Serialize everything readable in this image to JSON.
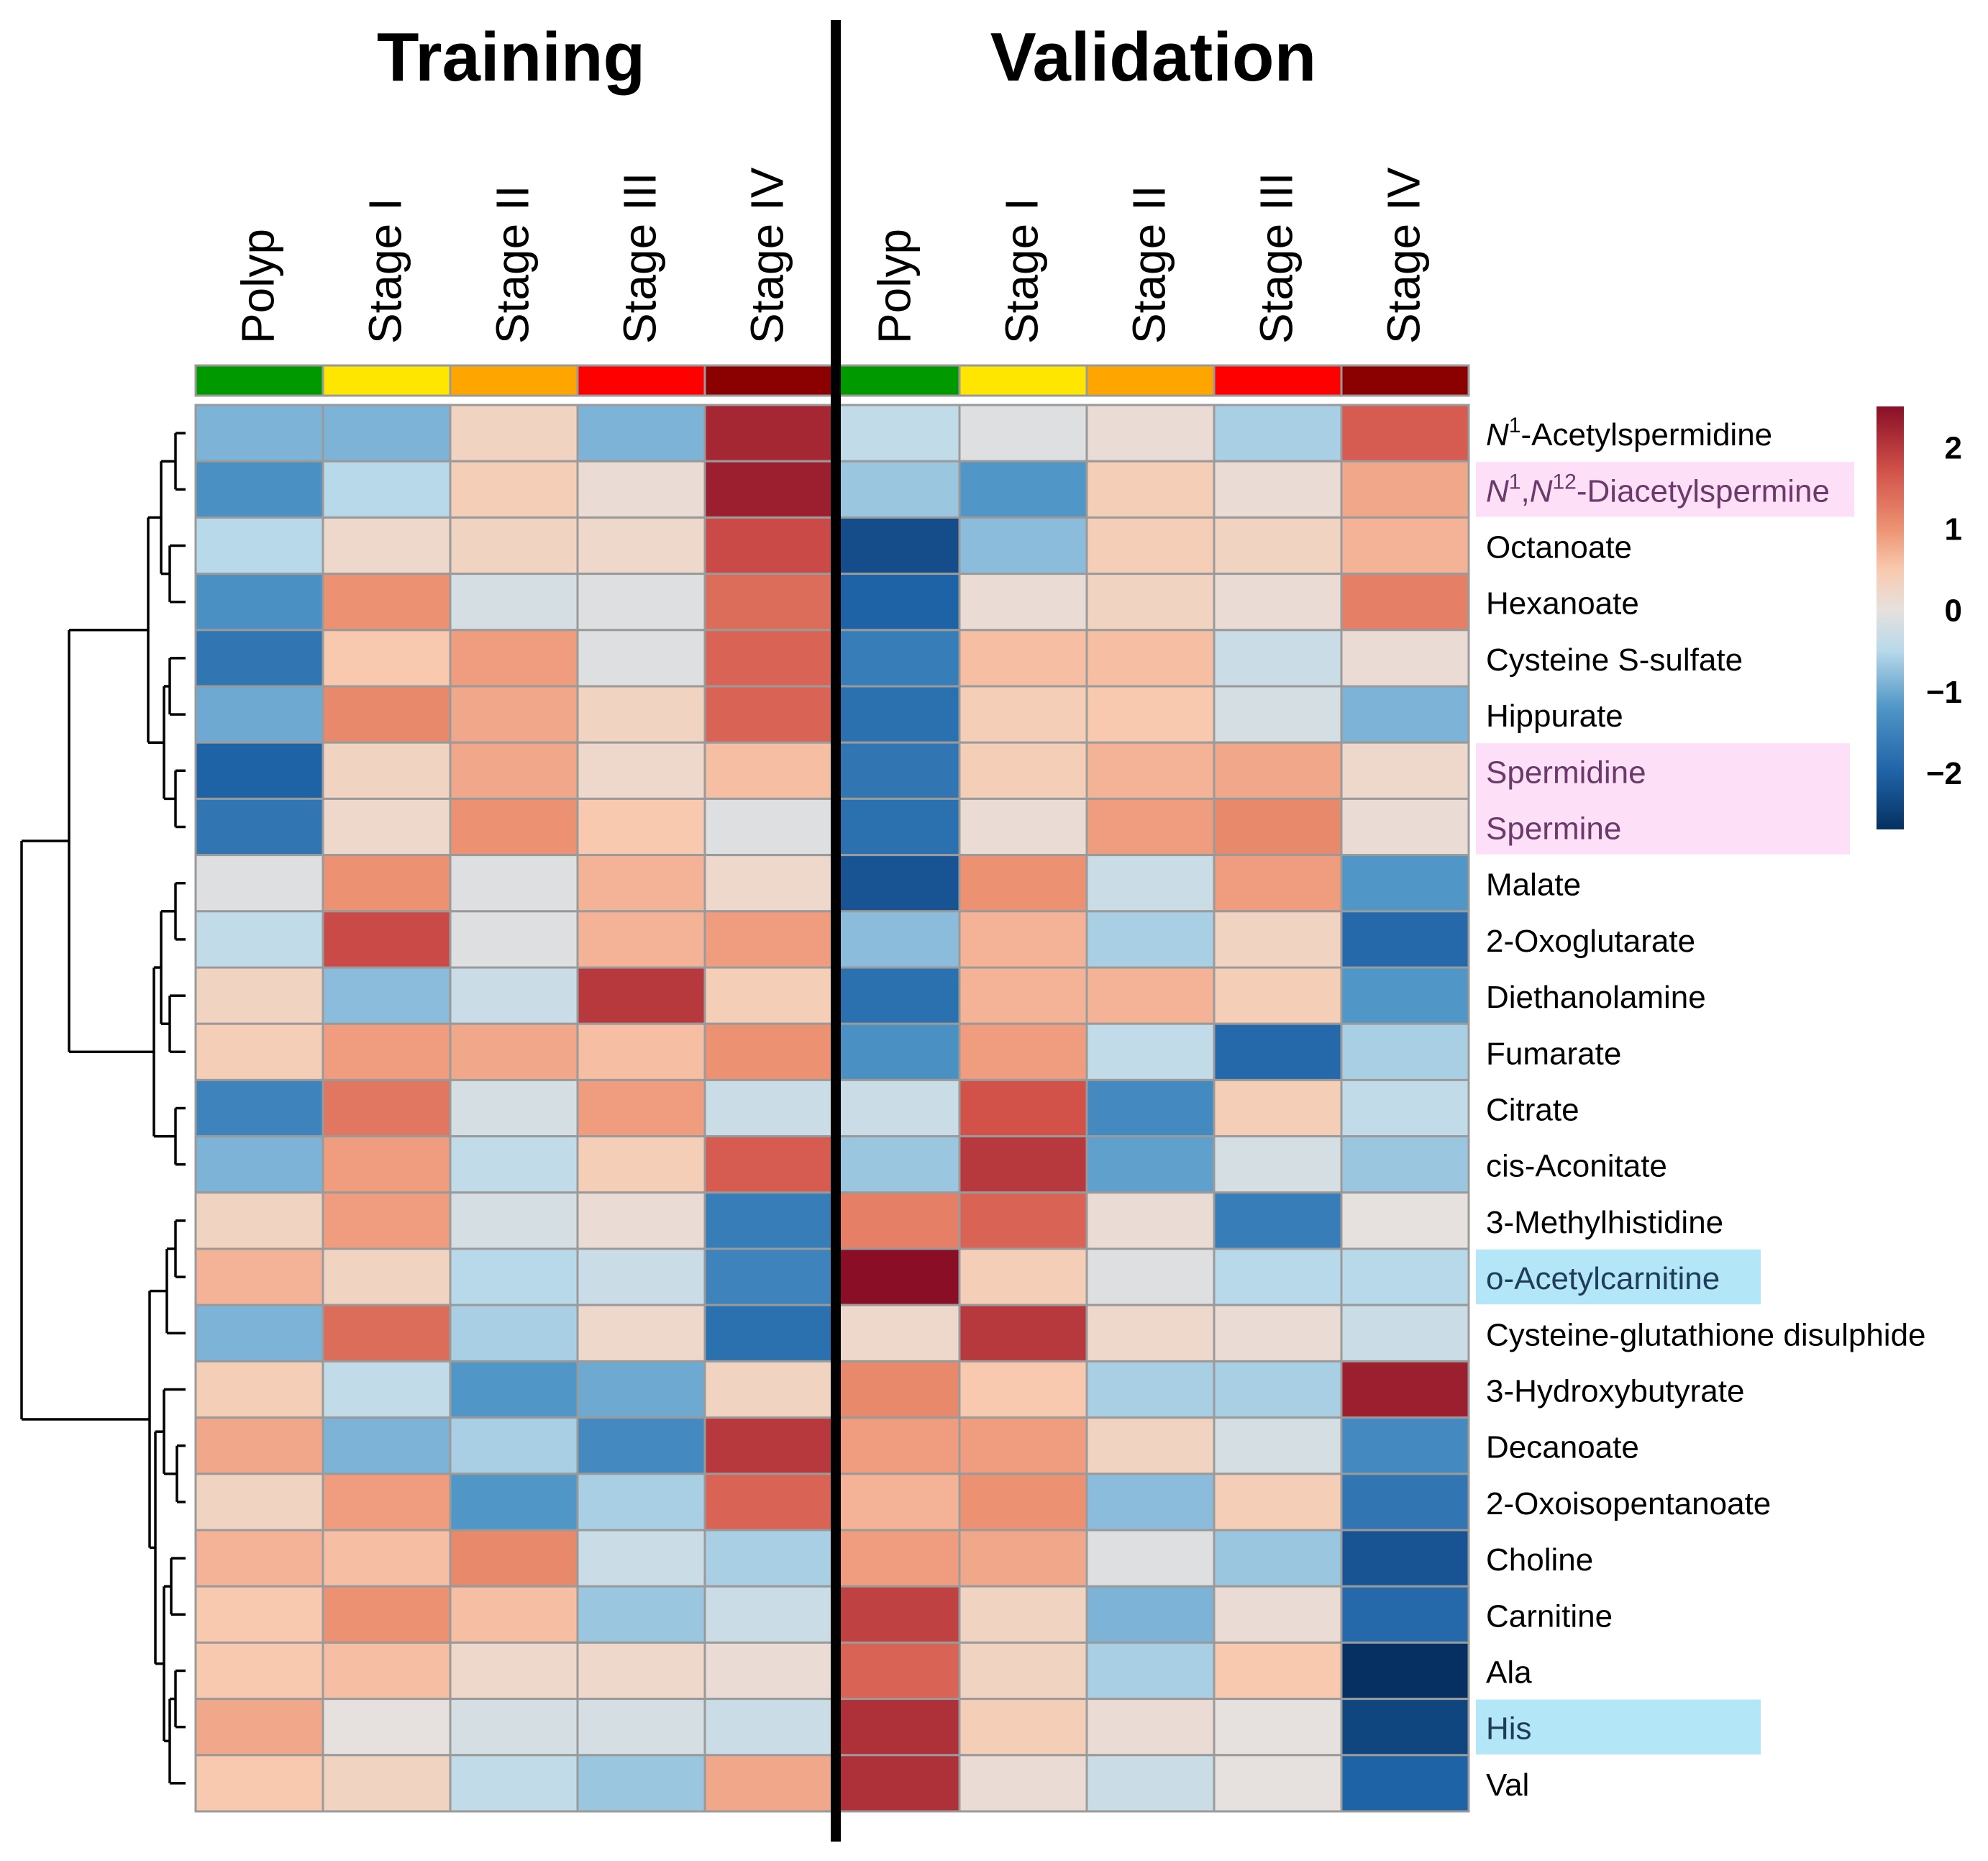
{
  "chart_data": {
    "type": "heatmap",
    "panels": [
      {
        "title": "Training",
        "columns": [
          "Polyp",
          "Stage I",
          "Stage II",
          "Stage III",
          "Stage IV"
        ]
      },
      {
        "title": "Validation",
        "columns": [
          "Polyp",
          "Stage I",
          "Stage II",
          "Stage III",
          "Stage IV"
        ]
      }
    ],
    "group_colors": [
      "#009900",
      "#ffe600",
      "#ffa500",
      "#ff0000",
      "#8b0000"
    ],
    "rows": [
      {
        "label": "Acetylspermidine",
        "highlight": null
      },
      {
        "label": "Diacetylspermine",
        "highlight": "#fde0f8"
      },
      {
        "label": "Octanoate",
        "highlight": null
      },
      {
        "label": "Hexanoate",
        "highlight": null
      },
      {
        "label": "Cysteine S-sulfate",
        "highlight": null
      },
      {
        "label": "Hippurate",
        "highlight": null
      },
      {
        "label": "Spermidine",
        "highlight": "#fde0f8"
      },
      {
        "label": "Spermine",
        "highlight": "#fde0f8"
      },
      {
        "label": "Malate",
        "highlight": null
      },
      {
        "label": "2-Oxoglutarate",
        "highlight": null
      },
      {
        "label": "Diethanolamine",
        "highlight": null
      },
      {
        "label": "Fumarate",
        "highlight": null
      },
      {
        "label": "Citrate",
        "highlight": null
      },
      {
        "label": "cis-Aconitate",
        "highlight": null
      },
      {
        "label": "3-Methylhistidine",
        "highlight": null
      },
      {
        "label": "o-Acetylcarnitine",
        "highlight": "#b3e6f7"
      },
      {
        "label": "Cysteine-glutathione disulphide",
        "highlight": null
      },
      {
        "label": "3-Hydroxybutyrate",
        "highlight": null
      },
      {
        "label": "Decanoate",
        "highlight": null
      },
      {
        "label": "2-Oxoisopentanoate",
        "highlight": null
      },
      {
        "label": "Choline",
        "highlight": null
      },
      {
        "label": "Carnitine",
        "highlight": null
      },
      {
        "label": "Ala",
        "highlight": null
      },
      {
        "label": "His",
        "highlight": "#b3e6f7"
      },
      {
        "label": "Val",
        "highlight": null
      }
    ],
    "superscript_labels": {
      "row0": {
        "pre": "N",
        "sup": "1"
      },
      "row1": {
        "pre1": "N",
        "sup1": "1",
        "mid": ",",
        "pre2": "N",
        "sup2": "12"
      }
    },
    "values": [
      [
        -0.9,
        -0.9,
        0.3,
        -0.9,
        2.2,
        -0.4,
        -0.1,
        0.1,
        -0.6,
        1.6
      ],
      [
        -1.3,
        -0.5,
        0.4,
        0.1,
        2.3,
        -0.7,
        -1.2,
        0.4,
        0.1,
        0.8
      ],
      [
        -0.5,
        0.2,
        0.3,
        0.2,
        1.8,
        -2.3,
        -0.8,
        0.4,
        0.3,
        0.7
      ],
      [
        -1.3,
        1.0,
        -0.2,
        -0.1,
        1.4,
        -2.0,
        0.1,
        0.3,
        0.1,
        1.2
      ],
      [
        -1.7,
        0.5,
        0.9,
        -0.1,
        1.5,
        -1.6,
        0.6,
        0.6,
        -0.3,
        0.1
      ],
      [
        -1.0,
        1.1,
        0.8,
        0.3,
        1.5,
        -1.8,
        0.4,
        0.5,
        -0.2,
        -0.9
      ],
      [
        -2.0,
        0.3,
        0.8,
        0.2,
        0.6,
        -1.7,
        0.4,
        0.7,
        0.8,
        0.2
      ],
      [
        -1.7,
        0.2,
        1.0,
        0.5,
        -0.1,
        -1.8,
        0.1,
        0.9,
        1.1,
        0.1
      ],
      [
        -0.1,
        1.0,
        -0.1,
        0.7,
        0.2,
        -2.2,
        1.0,
        -0.3,
        0.9,
        -1.2
      ],
      [
        -0.4,
        1.8,
        -0.1,
        0.7,
        0.9,
        -0.8,
        0.7,
        -0.6,
        0.3,
        -1.9
      ],
      [
        0.3,
        -0.8,
        -0.3,
        2.0,
        0.4,
        -1.8,
        0.7,
        0.7,
        0.4,
        -1.2
      ],
      [
        0.4,
        0.9,
        0.8,
        0.6,
        1.0,
        -1.3,
        0.9,
        -0.4,
        -1.9,
        -0.6
      ],
      [
        -1.5,
        1.3,
        -0.2,
        0.9,
        -0.3,
        -0.3,
        1.7,
        -1.4,
        0.4,
        -0.4
      ],
      [
        -0.9,
        0.9,
        -0.4,
        0.4,
        1.6,
        -0.7,
        2.0,
        -1.1,
        -0.2,
        -0.7
      ],
      [
        0.3,
        0.9,
        -0.2,
        0.1,
        -1.6,
        1.2,
        1.5,
        0.1,
        -1.6,
        0.0
      ],
      [
        0.7,
        0.3,
        -0.5,
        -0.3,
        -1.5,
        2.5,
        0.4,
        -0.1,
        -0.5,
        -0.5
      ],
      [
        -0.9,
        1.4,
        -0.6,
        0.2,
        -1.8,
        0.2,
        2.0,
        0.2,
        0.1,
        -0.3
      ],
      [
        0.4,
        -0.4,
        -1.2,
        -1.0,
        0.3,
        1.1,
        0.5,
        -0.6,
        -0.6,
        2.3
      ],
      [
        0.8,
        -0.9,
        -0.6,
        -1.4,
        2.0,
        0.9,
        0.9,
        0.3,
        -0.2,
        -1.4
      ],
      [
        0.3,
        0.9,
        -1.2,
        -0.6,
        1.5,
        0.7,
        1.0,
        -0.8,
        0.4,
        -1.7
      ],
      [
        0.7,
        0.6,
        1.1,
        -0.3,
        -0.6,
        0.9,
        0.8,
        -0.1,
        -0.7,
        -2.2
      ],
      [
        0.5,
        1.0,
        0.6,
        -0.7,
        -0.3,
        1.9,
        0.3,
        -0.9,
        0.1,
        -1.9
      ],
      [
        0.5,
        0.6,
        0.2,
        0.2,
        0.1,
        1.5,
        0.3,
        -0.6,
        0.5,
        -2.7
      ],
      [
        0.8,
        0.0,
        -0.2,
        -0.2,
        -0.3,
        2.1,
        0.4,
        0.1,
        0.0,
        -2.4
      ],
      [
        0.5,
        0.3,
        -0.4,
        -0.7,
        0.8,
        2.1,
        0.1,
        -0.3,
        0.0,
        -2.0
      ]
    ],
    "color_scale": {
      "min": -2.7,
      "max": 2.5,
      "ticks": [
        "2",
        "1",
        "0",
        "−1",
        "−2"
      ],
      "tick_values": [
        2,
        1,
        0,
        -1,
        -2
      ],
      "stops": [
        {
          "v": -2.7,
          "c": "#053061"
        },
        {
          "v": -2.0,
          "c": "#1f63a7"
        },
        {
          "v": -1.2,
          "c": "#5096c7"
        },
        {
          "v": -0.5,
          "c": "#b8d9ea"
        },
        {
          "v": 0.0,
          "c": "#e6e1de"
        },
        {
          "v": 0.5,
          "c": "#f9c9af"
        },
        {
          "v": 1.0,
          "c": "#ec9272"
        },
        {
          "v": 1.7,
          "c": "#d2524a"
        },
        {
          "v": 2.5,
          "c": "#8a0e26"
        }
      ]
    }
  }
}
